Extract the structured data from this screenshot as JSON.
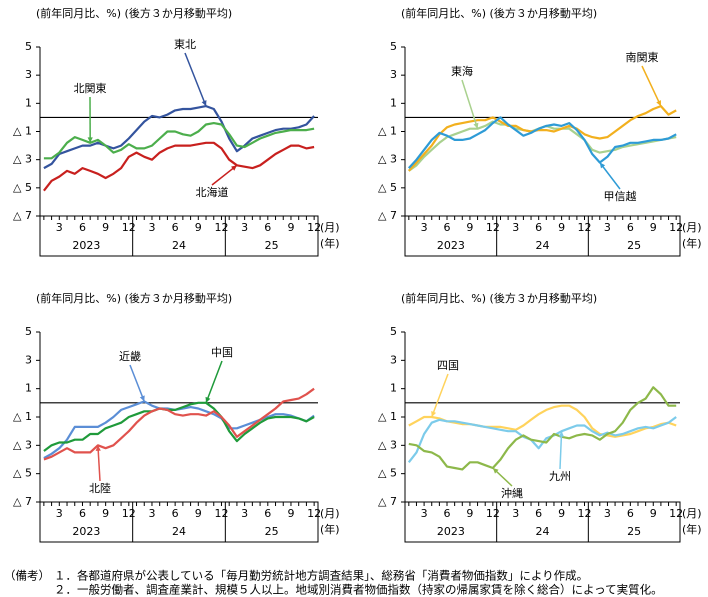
{
  "chart_data": [
    {
      "type": "line",
      "title": "(前年同月比、%) (後方３か月移動平均)",
      "categories": [
        null,
        null,
        "3",
        null,
        null,
        "6",
        null,
        null,
        "9",
        null,
        null,
        "12",
        null,
        null,
        "3",
        null,
        null,
        "6",
        null,
        null,
        "9",
        null,
        null,
        "12",
        null,
        null,
        "3",
        null,
        null,
        "6",
        null,
        null,
        "9",
        null,
        null,
        "12"
      ],
      "years": [
        "2023",
        "24",
        "25"
      ],
      "x_unit": "(月)",
      "year_unit": "(年)",
      "ylim": [
        -7,
        5
      ],
      "yticks": [
        {
          "value": -7,
          "label": "△ 7"
        },
        {
          "value": -5,
          "label": "△ 5"
        },
        {
          "value": -3,
          "label": "△ 3"
        },
        {
          "value": -1,
          "label": "△ 1"
        },
        1,
        3,
        5
      ],
      "series": [
        {
          "name": "東北",
          "color": "#34549e",
          "values": [
            -3.6,
            -3.3,
            -2.6,
            -2.4,
            -2.2,
            -2.0,
            -2.0,
            -1.8,
            -2.0,
            -2.2,
            -2.0,
            -1.5,
            -0.9,
            -0.3,
            0.1,
            0.0,
            0.2,
            0.5,
            0.6,
            0.6,
            0.7,
            0.8,
            0.6,
            -0.3,
            -1.5,
            -2.4,
            -2.0,
            -1.5,
            -1.3,
            -1.1,
            -0.9,
            -0.8,
            -0.8,
            -0.7,
            -0.5,
            0.1
          ]
        },
        {
          "name": "北関東",
          "color": "#4cae4c",
          "values": [
            -2.9,
            -2.9,
            -2.5,
            -1.8,
            -1.4,
            -1.6,
            -1.8,
            -1.6,
            -2.0,
            -2.5,
            -2.3,
            -1.9,
            -2.2,
            -2.2,
            -2.0,
            -1.5,
            -1.0,
            -1.0,
            -1.2,
            -1.3,
            -1.0,
            -0.5,
            -0.4,
            -0.5,
            -1.2,
            -2.0,
            -2.1,
            -1.8,
            -1.5,
            -1.3,
            -1.1,
            -1.0,
            -0.9,
            -0.9,
            -0.9,
            -0.8
          ]
        },
        {
          "name": "北海道",
          "color": "#c8201e",
          "values": [
            -5.2,
            -4.5,
            -4.2,
            -3.8,
            -4.0,
            -3.6,
            -3.8,
            -4.0,
            -4.3,
            -4.0,
            -3.6,
            -2.8,
            -2.5,
            -2.8,
            -3.0,
            -2.5,
            -2.2,
            -2.0,
            -2.0,
            -2.0,
            -1.9,
            -1.8,
            -1.8,
            -2.2,
            -3.0,
            -3.4,
            -3.5,
            -3.6,
            -3.4,
            -3.0,
            -2.6,
            -2.3,
            -2.0,
            -2.0,
            -2.2,
            -2.1
          ]
        }
      ]
    },
    {
      "type": "line",
      "title": "(前年同月比、%) (後方３か月移動平均)",
      "categories": [
        null,
        null,
        "3",
        null,
        null,
        "6",
        null,
        null,
        "9",
        null,
        null,
        "12",
        null,
        null,
        "3",
        null,
        null,
        "6",
        null,
        null,
        "9",
        null,
        null,
        "12",
        null,
        null,
        "3",
        null,
        null,
        "6",
        null,
        null,
        "9",
        null,
        null,
        "12"
      ],
      "years": [
        "2023",
        "24",
        "25"
      ],
      "x_unit": "(月)",
      "year_unit": "(年)",
      "ylim": [
        -7,
        5
      ],
      "yticks": [
        {
          "value": -7,
          "label": "△ 7"
        },
        {
          "value": -5,
          "label": "△ 5"
        },
        {
          "value": -3,
          "label": "△ 3"
        },
        {
          "value": -1,
          "label": "△ 1"
        },
        1,
        3,
        5
      ],
      "series": [
        {
          "name": "東海",
          "color": "#a9d18e",
          "values": [
            -3.8,
            -3.4,
            -2.8,
            -2.3,
            -1.8,
            -1.4,
            -1.2,
            -1.0,
            -0.8,
            -0.8,
            -0.6,
            -0.3,
            -0.5,
            -0.5,
            -0.8,
            -0.9,
            -1.0,
            -0.8,
            -0.6,
            -0.8,
            -0.8,
            -0.8,
            -1.2,
            -1.6,
            -2.3,
            -2.5,
            -2.4,
            -2.3,
            -2.1,
            -2.0,
            -1.9,
            -1.8,
            -1.7,
            -1.6,
            -1.5,
            -1.4
          ]
        },
        {
          "name": "南関東",
          "color": "#f2b01e",
          "values": [
            -3.8,
            -3.2,
            -2.6,
            -2.0,
            -1.2,
            -0.7,
            -0.5,
            -0.4,
            -0.3,
            -0.2,
            -0.2,
            0.0,
            -0.3,
            -0.6,
            -0.6,
            -0.9,
            -1.0,
            -0.9,
            -0.9,
            -1.0,
            -0.8,
            -0.6,
            -0.8,
            -1.2,
            -1.4,
            -1.5,
            -1.4,
            -1.0,
            -0.6,
            -0.2,
            0.1,
            0.3,
            0.6,
            0.8,
            0.2,
            0.5
          ]
        },
        {
          "name": "甲信越",
          "color": "#2e9bd6",
          "values": [
            -3.6,
            -3.0,
            -2.3,
            -1.6,
            -1.1,
            -1.3,
            -1.6,
            -1.6,
            -1.5,
            -1.2,
            -0.9,
            -0.4,
            0.0,
            -0.5,
            -0.9,
            -1.3,
            -1.1,
            -0.8,
            -0.6,
            -0.5,
            -0.6,
            -0.4,
            -0.9,
            -1.6,
            -2.6,
            -3.2,
            -2.8,
            -2.1,
            -2.0,
            -1.8,
            -1.8,
            -1.7,
            -1.6,
            -1.6,
            -1.5,
            -1.2
          ]
        }
      ]
    },
    {
      "type": "line",
      "title": "(前年同月比、%) (後方３か月移動平均)",
      "categories": [
        null,
        null,
        "3",
        null,
        null,
        "6",
        null,
        null,
        "9",
        null,
        null,
        "12",
        null,
        null,
        "3",
        null,
        null,
        "6",
        null,
        null,
        "9",
        null,
        null,
        "12",
        null,
        null,
        "3",
        null,
        null,
        "6",
        null,
        null,
        "9",
        null,
        null,
        "12"
      ],
      "years": [
        "2023",
        "24",
        "25"
      ],
      "x_unit": "(月)",
      "year_unit": "(年)",
      "ylim": [
        -7,
        5
      ],
      "yticks": [
        {
          "value": -7,
          "label": "△ 7"
        },
        {
          "value": -5,
          "label": "△ 5"
        },
        {
          "value": -3,
          "label": "△ 3"
        },
        {
          "value": -1,
          "label": "△ 1"
        },
        1,
        3,
        5
      ],
      "series": [
        {
          "name": "近畿",
          "color": "#5b8ed6",
          "values": [
            -3.9,
            -3.6,
            -3.2,
            -2.6,
            -1.7,
            -1.7,
            -1.7,
            -1.7,
            -1.4,
            -1.0,
            -0.5,
            -0.3,
            -0.1,
            0.1,
            -0.2,
            -0.4,
            -0.4,
            -0.5,
            -0.4,
            -0.3,
            -0.4,
            -0.6,
            -0.8,
            -1.1,
            -1.8,
            -1.8,
            -1.6,
            -1.4,
            -1.2,
            -1.0,
            -0.8,
            -0.8,
            -0.9,
            -1.1,
            -1.3,
            -0.9
          ]
        },
        {
          "name": "中国",
          "color": "#1f9a3a",
          "values": [
            -3.4,
            -3.0,
            -2.8,
            -2.8,
            -2.6,
            -2.6,
            -2.2,
            -2.2,
            -1.8,
            -1.6,
            -1.4,
            -1.0,
            -0.8,
            -0.6,
            -0.6,
            -0.4,
            -0.5,
            -0.5,
            -0.3,
            -0.1,
            0.0,
            0.0,
            -0.4,
            -1.0,
            -2.0,
            -2.7,
            -2.2,
            -1.8,
            -1.4,
            -1.1,
            -1.0,
            -1.0,
            -1.0,
            -1.1,
            -1.3,
            -1.0
          ]
        },
        {
          "name": "北陸",
          "color": "#e0524d",
          "values": [
            -4.0,
            -3.8,
            -3.5,
            -3.2,
            -3.5,
            -3.5,
            -3.5,
            -3.0,
            -3.2,
            -3.0,
            -2.5,
            -2.0,
            -1.4,
            -0.9,
            -0.6,
            -0.4,
            -0.5,
            -0.8,
            -0.9,
            -0.8,
            -0.8,
            -0.9,
            -0.6,
            -1.0,
            -1.6,
            -2.4,
            -2.0,
            -1.6,
            -1.2,
            -0.8,
            -0.4,
            0.1,
            0.2,
            0.3,
            0.6,
            1.0
          ]
        }
      ]
    },
    {
      "type": "line",
      "title": "(前年同月比、%) (後方３か月移動平均)",
      "categories": [
        null,
        null,
        "3",
        null,
        null,
        "6",
        null,
        null,
        "9",
        null,
        null,
        "12",
        null,
        null,
        "3",
        null,
        null,
        "6",
        null,
        null,
        "9",
        null,
        null,
        "12",
        null,
        null,
        "3",
        null,
        null,
        "6",
        null,
        null,
        "9",
        null,
        null,
        "12"
      ],
      "years": [
        "2023",
        "24",
        "25"
      ],
      "x_unit": "(月)",
      "year_unit": "(年)",
      "ylim": [
        -7,
        5
      ],
      "yticks": [
        {
          "value": -7,
          "label": "△ 7"
        },
        {
          "value": -5,
          "label": "△ 5"
        },
        {
          "value": -3,
          "label": "△ 3"
        },
        {
          "value": -1,
          "label": "△ 1"
        },
        1,
        3,
        5
      ],
      "series": [
        {
          "name": "四国",
          "color": "#ffd35c",
          "values": [
            -1.6,
            -1.3,
            -1.0,
            -1.0,
            -1.1,
            -1.3,
            -1.4,
            -1.5,
            -1.5,
            -1.6,
            -1.7,
            -1.7,
            -1.7,
            -1.8,
            -1.9,
            -1.6,
            -1.2,
            -0.8,
            -0.5,
            -0.3,
            -0.2,
            -0.2,
            -0.5,
            -1.0,
            -1.8,
            -2.2,
            -2.3,
            -2.4,
            -2.3,
            -2.2,
            -2.0,
            -1.8,
            -1.7,
            -1.5,
            -1.4,
            -1.6
          ]
        },
        {
          "name": "九州",
          "color": "#7ccbea",
          "values": [
            -4.2,
            -3.5,
            -2.2,
            -1.4,
            -1.2,
            -1.3,
            -1.3,
            -1.4,
            -1.5,
            -1.6,
            -1.7,
            -1.8,
            -1.9,
            -2.0,
            -2.0,
            -2.4,
            -2.6,
            -3.2,
            -2.5,
            -2.3,
            -2.0,
            -1.8,
            -1.6,
            -1.6,
            -2.0,
            -2.3,
            -2.1,
            -2.3,
            -2.2,
            -2.0,
            -1.8,
            -1.7,
            -1.8,
            -1.6,
            -1.4,
            -1.0
          ]
        },
        {
          "name": "沖縄",
          "color": "#8db84a",
          "values": [
            -2.9,
            -3.0,
            -3.4,
            -3.5,
            -3.8,
            -4.5,
            -4.6,
            -4.7,
            -4.2,
            -4.2,
            -4.4,
            -4.6,
            -4.0,
            -3.2,
            -2.6,
            -2.3,
            -2.6,
            -2.7,
            -2.8,
            -2.2,
            -2.4,
            -2.5,
            -2.3,
            -2.2,
            -2.3,
            -2.6,
            -2.2,
            -2.0,
            -1.4,
            -0.5,
            0.0,
            0.3,
            1.1,
            0.6,
            -0.2,
            -0.2
          ]
        }
      ]
    }
  ],
  "notes": {
    "label": "（備考）",
    "items": [
      "１．各都道府県が公表している「毎月勤労統計地方調査結果」、総務省「消費者物価指数」により作成。",
      "２．一般労働者、調査産業計、規模５人以上。地域別消費者物価指数（持家の帰属家賃を除く総合）によって実質化。"
    ]
  }
}
